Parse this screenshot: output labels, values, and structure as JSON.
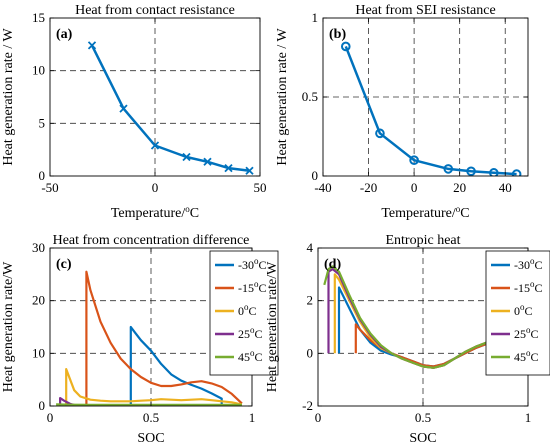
{
  "chart_data": [
    {
      "type": "line",
      "panel_label": "(a)",
      "title": "Heat from contact resistance",
      "xlabel": "Temperature/",
      "xlabel_unit": "C",
      "ylabel": "Heat generation rate / W",
      "xlim": [
        -50,
        50
      ],
      "ylim": [
        0,
        15
      ],
      "xticks": [
        -50,
        0,
        50
      ],
      "yticks": [
        0,
        5,
        10,
        15
      ],
      "grid": "dashed",
      "series": [
        {
          "marker": "x",
          "color": "#0072BD",
          "x": [
            -30,
            -15,
            0,
            15,
            25,
            35,
            45
          ],
          "y": [
            12.4,
            6.4,
            2.9,
            1.8,
            1.35,
            0.75,
            0.5
          ]
        }
      ]
    },
    {
      "type": "line",
      "panel_label": "(b)",
      "title": "Heat from SEI resistance",
      "xlabel": "Temperature/",
      "xlabel_unit": "C",
      "ylabel": "Heat generation rate / W",
      "xlim": [
        -40,
        50
      ],
      "ylim": [
        0,
        1
      ],
      "xticks": [
        -40,
        -20,
        0,
        20,
        40
      ],
      "yticks": [
        0,
        0.5,
        1
      ],
      "grid": "dashed",
      "series": [
        {
          "marker": "o",
          "color": "#0072BD",
          "x": [
            -30,
            -15,
            0,
            15,
            25,
            35,
            45
          ],
          "y": [
            0.82,
            0.27,
            0.1,
            0.045,
            0.03,
            0.02,
            0.012
          ]
        }
      ]
    },
    {
      "type": "line",
      "panel_label": "(c)",
      "title": "Heat from concentration difference",
      "xlabel": "SOC",
      "ylabel": "Heat generation rate/W",
      "xlim": [
        0,
        1
      ],
      "ylim": [
        0,
        30
      ],
      "xticks": [
        0,
        0.5,
        1
      ],
      "yticks": [
        0,
        10,
        20,
        30
      ],
      "grid": "dashed",
      "legend": "top-right",
      "series": [
        {
          "name": "-30",
          "color": "#0072BD",
          "x": [
            0.4,
            0.4,
            0.42,
            0.45,
            0.5,
            0.55,
            0.6,
            0.65,
            0.7,
            0.75,
            0.8,
            0.85,
            0.85
          ],
          "y": [
            0,
            15,
            14,
            12.5,
            10.5,
            8,
            6,
            4.8,
            4.0,
            3.3,
            2.4,
            1.4,
            0
          ]
        },
        {
          "name": "-15",
          "color": "#D95319",
          "x": [
            0.18,
            0.18,
            0.2,
            0.25,
            0.3,
            0.35,
            0.4,
            0.45,
            0.5,
            0.55,
            0.6,
            0.65,
            0.7,
            0.75,
            0.8,
            0.85,
            0.9,
            0.95
          ],
          "y": [
            0,
            25.5,
            22,
            16,
            12,
            9,
            7,
            5.5,
            4.4,
            3.8,
            3.8,
            4.1,
            4.5,
            4.7,
            4.3,
            3.6,
            2.3,
            0.5
          ]
        },
        {
          "name": "0",
          "color": "#EDB120",
          "x": [
            0.08,
            0.08,
            0.1,
            0.12,
            0.15,
            0.2,
            0.25,
            0.3,
            0.35,
            0.4,
            0.45,
            0.5,
            0.55,
            0.6,
            0.65,
            0.7,
            0.75,
            0.8,
            0.85,
            0.9,
            0.95
          ],
          "y": [
            0,
            7,
            5,
            3,
            1.8,
            1.2,
            1.0,
            0.9,
            0.9,
            0.9,
            1.0,
            1.1,
            1.3,
            1.2,
            1.1,
            1.2,
            1.3,
            1.1,
            0.9,
            0.7,
            0.3
          ]
        },
        {
          "name": "25",
          "color": "#7E2F8E",
          "x": [
            0.05,
            0.05,
            0.07,
            0.1,
            0.12
          ],
          "y": [
            0,
            1.5,
            1.0,
            0.4,
            0.2
          ]
        },
        {
          "name": "45",
          "color": "#77AC30",
          "x": [
            0.03,
            0.1,
            0.2,
            0.3,
            0.4,
            0.5,
            0.6,
            0.7,
            0.8,
            0.9,
            0.95
          ],
          "y": [
            0.3,
            0.25,
            0.2,
            0.2,
            0.2,
            0.2,
            0.2,
            0.2,
            0.2,
            0.2,
            0.2
          ]
        }
      ]
    },
    {
      "type": "line",
      "panel_label": "(d)",
      "title": "Entropic heat",
      "xlabel": "SOC",
      "ylabel": "Heat generation rate/W",
      "xlim": [
        0,
        1
      ],
      "ylim": [
        -2,
        4
      ],
      "xticks": [
        0,
        0.5,
        1
      ],
      "yticks": [
        -2,
        0,
        2,
        4
      ],
      "grid": "dashed",
      "legend": "top-right",
      "series": [
        {
          "name": "-30",
          "color": "#0072BD",
          "x": [
            0.1,
            0.1,
            0.15,
            0.2,
            0.25,
            0.3,
            0.35,
            0.4,
            0.45,
            0.5,
            0.55,
            0.6,
            0.65,
            0.7,
            0.75,
            0.8,
            0.85,
            0.9,
            0.93
          ],
          "y": [
            0,
            2.5,
            1.7,
            0.9,
            0.4,
            0.1,
            -0.05,
            -0.15,
            -0.3,
            -0.45,
            -0.5,
            -0.4,
            -0.2,
            0.0,
            0.2,
            0.35,
            0.25,
            0.0,
            0
          ]
        },
        {
          "name": "-15",
          "color": "#D95319",
          "x": [
            0.18,
            0.18,
            0.2,
            0.25,
            0.3,
            0.35,
            0.4,
            0.45,
            0.5,
            0.55,
            0.6,
            0.65,
            0.7,
            0.75,
            0.8,
            0.85,
            0.9,
            0.95,
            0.97,
            0.97
          ],
          "y": [
            0,
            1.1,
            0.9,
            0.5,
            0.2,
            0.0,
            -0.15,
            -0.3,
            -0.45,
            -0.5,
            -0.4,
            -0.2,
            0.0,
            0.2,
            0.35,
            0.3,
            0.1,
            -0.3,
            -0.7,
            0
          ]
        },
        {
          "name": "0",
          "color": "#EDB120",
          "x": [
            0.08,
            0.08,
            0.1,
            0.15,
            0.2,
            0.25,
            0.3,
            0.35,
            0.4,
            0.45,
            0.5,
            0.55,
            0.6,
            0.65,
            0.7,
            0.75,
            0.8,
            0.85,
            0.9,
            0.95,
            0.98,
            0.98
          ],
          "y": [
            0,
            3.0,
            2.8,
            2.0,
            1.2,
            0.6,
            0.2,
            0.0,
            -0.2,
            -0.35,
            -0.5,
            -0.55,
            -0.45,
            -0.2,
            0.05,
            0.25,
            0.4,
            0.35,
            0.1,
            -0.3,
            -0.7,
            0
          ]
        },
        {
          "name": "25",
          "color": "#7E2F8E",
          "x": [
            0.05,
            0.05,
            0.07,
            0.1,
            0.15,
            0.2,
            0.25,
            0.3,
            0.35,
            0.4,
            0.45,
            0.5,
            0.55,
            0.6,
            0.65,
            0.7,
            0.75,
            0.8,
            0.85,
            0.9,
            0.95,
            0.98,
            0.98
          ],
          "y": [
            0,
            3.1,
            3.2,
            3.0,
            2.1,
            1.3,
            0.7,
            0.25,
            0.0,
            -0.2,
            -0.35,
            -0.5,
            -0.55,
            -0.45,
            -0.2,
            0.05,
            0.25,
            0.4,
            0.35,
            0.1,
            -0.35,
            -0.75,
            0
          ]
        },
        {
          "name": "45",
          "color": "#77AC30",
          "x": [
            0.03,
            0.05,
            0.07,
            0.1,
            0.15,
            0.2,
            0.25,
            0.3,
            0.35,
            0.4,
            0.45,
            0.5,
            0.55,
            0.6,
            0.65,
            0.7,
            0.75,
            0.8,
            0.85,
            0.9,
            0.95,
            0.98
          ],
          "y": [
            2.6,
            3.2,
            3.3,
            3.1,
            2.2,
            1.35,
            0.75,
            0.3,
            0.0,
            -0.2,
            -0.35,
            -0.5,
            -0.55,
            -0.45,
            -0.2,
            0.05,
            0.25,
            0.4,
            0.35,
            0.1,
            -0.35,
            -0.8
          ]
        }
      ]
    }
  ]
}
